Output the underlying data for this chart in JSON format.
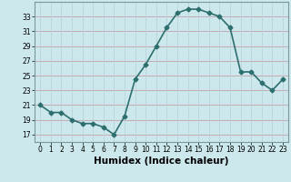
{
  "x": [
    0,
    1,
    2,
    3,
    4,
    5,
    6,
    7,
    8,
    9,
    10,
    11,
    12,
    13,
    14,
    15,
    16,
    17,
    18,
    19,
    20,
    21,
    22,
    23
  ],
  "y": [
    21,
    20,
    20,
    19,
    18.5,
    18.5,
    18,
    17,
    19.5,
    24.5,
    26.5,
    29,
    31.5,
    33.5,
    34,
    34,
    33.5,
    33,
    31.5,
    25.5,
    25.5,
    24,
    23,
    24.5
  ],
  "line_color": "#2d6e6e",
  "marker": "D",
  "marker_size": 2.5,
  "bg_color": "#cce8ec",
  "hgrid_color": "#c4a0a8",
  "vgrid_color": "#b8d4d8",
  "xlabel": "Humidex (Indice chaleur)",
  "xlim": [
    -0.5,
    23.5
  ],
  "ylim": [
    16,
    35
  ],
  "yticks": [
    17,
    19,
    21,
    23,
    25,
    27,
    29,
    31,
    33
  ],
  "xticks": [
    0,
    1,
    2,
    3,
    4,
    5,
    6,
    7,
    8,
    9,
    10,
    11,
    12,
    13,
    14,
    15,
    16,
    17,
    18,
    19,
    20,
    21,
    22,
    23
  ],
  "tick_fontsize": 5.5,
  "xlabel_fontsize": 7.5,
  "line_width": 1.2
}
